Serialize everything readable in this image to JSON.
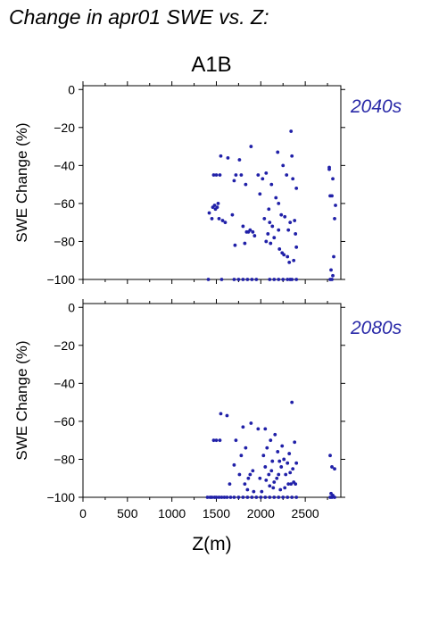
{
  "figure_title": "Change in apr01 SWE vs. Z:",
  "scenario": "A1B",
  "chart_data": [
    {
      "type": "scatter",
      "title": "2040s",
      "xlabel": "",
      "ylabel": "SWE Change (%)",
      "xlim": [
        0,
        2900
      ],
      "ylim": [
        -100,
        2
      ],
      "xticks": [
        0,
        500,
        1000,
        1500,
        2000,
        2500
      ],
      "yticks": [
        0,
        -20,
        -40,
        -60,
        -80,
        -100
      ],
      "grid": false,
      "color": "#2020a8",
      "points": [
        [
          1410,
          -100
        ],
        [
          1560,
          -100
        ],
        [
          1700,
          -100
        ],
        [
          1750,
          -100
        ],
        [
          1800,
          -100
        ],
        [
          1850,
          -100
        ],
        [
          1900,
          -100
        ],
        [
          1950,
          -100
        ],
        [
          2100,
          -100
        ],
        [
          2150,
          -100
        ],
        [
          2200,
          -100
        ],
        [
          2250,
          -100
        ],
        [
          2300,
          -100
        ],
        [
          2330,
          -100
        ],
        [
          2350,
          -100
        ],
        [
          2400,
          -100
        ],
        [
          2780,
          -100
        ],
        [
          2800,
          -100
        ],
        [
          1420,
          -65
        ],
        [
          1450,
          -68
        ],
        [
          1460,
          -62
        ],
        [
          1470,
          -45
        ],
        [
          1480,
          -61
        ],
        [
          1490,
          -63
        ],
        [
          1500,
          -45
        ],
        [
          1510,
          -62
        ],
        [
          1520,
          -60
        ],
        [
          1530,
          -68
        ],
        [
          1540,
          -45
        ],
        [
          1550,
          -35
        ],
        [
          1570,
          -69
        ],
        [
          1600,
          -70
        ],
        [
          1630,
          -36
        ],
        [
          1680,
          -66
        ],
        [
          1700,
          -48
        ],
        [
          1710,
          -82
        ],
        [
          1720,
          -45
        ],
        [
          1760,
          -37
        ],
        [
          1780,
          -45
        ],
        [
          1800,
          -72
        ],
        [
          1820,
          -81
        ],
        [
          1830,
          -50
        ],
        [
          1840,
          -75
        ],
        [
          1860,
          -75
        ],
        [
          1880,
          -74
        ],
        [
          1890,
          -30
        ],
        [
          1910,
          -75
        ],
        [
          1930,
          -77
        ],
        [
          1970,
          -45
        ],
        [
          1990,
          -55
        ],
        [
          2020,
          -47
        ],
        [
          2040,
          -68
        ],
        [
          2060,
          -80
        ],
        [
          2060,
          -44
        ],
        [
          2080,
          -76
        ],
        [
          2090,
          -63
        ],
        [
          2100,
          -70
        ],
        [
          2110,
          -81
        ],
        [
          2120,
          -50
        ],
        [
          2130,
          -72
        ],
        [
          2150,
          -78
        ],
        [
          2170,
          -57
        ],
        [
          2190,
          -33
        ],
        [
          2200,
          -74
        ],
        [
          2200,
          -60
        ],
        [
          2210,
          -84
        ],
        [
          2230,
          -66
        ],
        [
          2240,
          -86
        ],
        [
          2250,
          -40
        ],
        [
          2260,
          -87
        ],
        [
          2270,
          -67
        ],
        [
          2290,
          -45
        ],
        [
          2300,
          -88
        ],
        [
          2310,
          -74
        ],
        [
          2320,
          -91
        ],
        [
          2330,
          -70
        ],
        [
          2340,
          -22
        ],
        [
          2350,
          -35
        ],
        [
          2360,
          -47
        ],
        [
          2370,
          -90
        ],
        [
          2380,
          -69
        ],
        [
          2390,
          -76
        ],
        [
          2400,
          -52
        ],
        [
          2400,
          -83
        ],
        [
          2770,
          -41
        ],
        [
          2770,
          -42
        ],
        [
          2780,
          -56
        ],
        [
          2790,
          -95
        ],
        [
          2800,
          -56
        ],
        [
          2810,
          -47
        ],
        [
          2820,
          -88
        ],
        [
          2830,
          -68
        ],
        [
          2840,
          -61
        ],
        [
          2810,
          -98
        ]
      ]
    },
    {
      "type": "scatter",
      "title": "2080s",
      "xlabel": "Z(m)",
      "ylabel": "SWE Change (%)",
      "xlim": [
        0,
        2900
      ],
      "ylim": [
        -100,
        2
      ],
      "xticks": [
        0,
        500,
        1000,
        1500,
        2000,
        2500
      ],
      "yticks": [
        0,
        -20,
        -40,
        -60,
        -80,
        -100
      ],
      "grid": false,
      "color": "#2020a8",
      "points": [
        [
          1400,
          -100
        ],
        [
          1430,
          -100
        ],
        [
          1450,
          -100
        ],
        [
          1480,
          -100
        ],
        [
          1500,
          -100
        ],
        [
          1530,
          -100
        ],
        [
          1560,
          -100
        ],
        [
          1590,
          -100
        ],
        [
          1620,
          -100
        ],
        [
          1660,
          -100
        ],
        [
          1700,
          -100
        ],
        [
          1750,
          -100
        ],
        [
          1800,
          -100
        ],
        [
          1850,
          -100
        ],
        [
          1900,
          -100
        ],
        [
          1950,
          -100
        ],
        [
          2000,
          -100
        ],
        [
          2050,
          -100
        ],
        [
          2100,
          -100
        ],
        [
          2150,
          -100
        ],
        [
          2200,
          -100
        ],
        [
          2250,
          -100
        ],
        [
          2300,
          -100
        ],
        [
          2350,
          -100
        ],
        [
          2400,
          -100
        ],
        [
          2780,
          -100
        ],
        [
          2800,
          -100
        ],
        [
          2830,
          -100
        ],
        [
          1470,
          -70
        ],
        [
          1500,
          -70
        ],
        [
          1540,
          -70
        ],
        [
          1550,
          -56
        ],
        [
          1620,
          -57
        ],
        [
          1650,
          -93
        ],
        [
          1700,
          -83
        ],
        [
          1720,
          -70
        ],
        [
          1760,
          -88
        ],
        [
          1780,
          -78
        ],
        [
          1800,
          -63
        ],
        [
          1820,
          -93
        ],
        [
          1830,
          -74
        ],
        [
          1850,
          -96
        ],
        [
          1860,
          -90
        ],
        [
          1880,
          -88
        ],
        [
          1890,
          -61
        ],
        [
          1910,
          -86
        ],
        [
          1920,
          -97
        ],
        [
          1970,
          -64
        ],
        [
          1990,
          -90
        ],
        [
          2010,
          -97
        ],
        [
          2030,
          -78
        ],
        [
          2050,
          -84
        ],
        [
          2050,
          -64
        ],
        [
          2060,
          -91
        ],
        [
          2070,
          -74
        ],
        [
          2090,
          -88
        ],
        [
          2100,
          -94
        ],
        [
          2110,
          -70
        ],
        [
          2120,
          -86
        ],
        [
          2130,
          -81
        ],
        [
          2140,
          -95
        ],
        [
          2150,
          -92
        ],
        [
          2160,
          -67
        ],
        [
          2180,
          -90
        ],
        [
          2190,
          -76
        ],
        [
          2200,
          -88
        ],
        [
          2210,
          -81
        ],
        [
          2220,
          -96
        ],
        [
          2230,
          -84
        ],
        [
          2240,
          -73
        ],
        [
          2260,
          -80
        ],
        [
          2270,
          -95
        ],
        [
          2280,
          -88
        ],
        [
          2300,
          -82
        ],
        [
          2310,
          -93
        ],
        [
          2320,
          -77
        ],
        [
          2330,
          -87
        ],
        [
          2340,
          -93
        ],
        [
          2350,
          -50
        ],
        [
          2360,
          -85
        ],
        [
          2370,
          -92
        ],
        [
          2380,
          -71
        ],
        [
          2390,
          -93
        ],
        [
          2400,
          -82
        ],
        [
          2780,
          -78
        ],
        [
          2790,
          -98
        ],
        [
          2800,
          -84
        ],
        [
          2810,
          -99
        ],
        [
          2830,
          -85
        ]
      ]
    }
  ]
}
